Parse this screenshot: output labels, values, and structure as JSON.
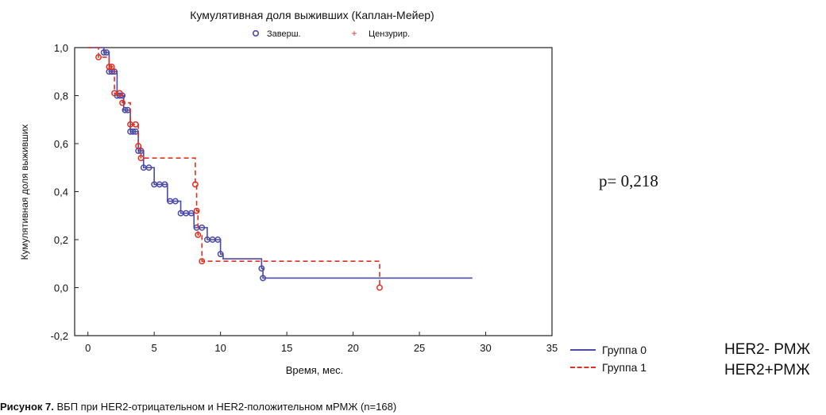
{
  "chart_data": {
    "type": "line",
    "title": "Кумулятивная доля выживших (Каплан-Мейер)",
    "xlabel": "Время, мес.",
    "ylabel": "Кумулятивная доля выживших",
    "xlim": [
      -1,
      35
    ],
    "ylim": [
      -0.2,
      1.0
    ],
    "x_ticks": [
      "0",
      "5",
      "10",
      "15",
      "20",
      "25",
      "30",
      "35"
    ],
    "y_ticks": [
      "-0,2",
      "0,0",
      "0,2",
      "0,4",
      "0,6",
      "0,8",
      "1,0"
    ],
    "marker_legend": {
      "complete": "Заверш.",
      "censored": "Цензурир."
    },
    "grid": false,
    "series": [
      {
        "name": "Группа 0",
        "color": "#4a4aa8",
        "style": "solid",
        "steps": [
          [
            0,
            1.0
          ],
          [
            1.2,
            0.98
          ],
          [
            1.6,
            0.9
          ],
          [
            2.2,
            0.8
          ],
          [
            2.7,
            0.74
          ],
          [
            3.2,
            0.65
          ],
          [
            3.8,
            0.57
          ],
          [
            4.2,
            0.5
          ],
          [
            5.0,
            0.43
          ],
          [
            6.0,
            0.36
          ],
          [
            7.0,
            0.31
          ],
          [
            8.0,
            0.25
          ],
          [
            9.0,
            0.2
          ],
          [
            10.0,
            0.14
          ],
          [
            10.2,
            0.12
          ],
          [
            13.0,
            0.12
          ],
          [
            13.1,
            0.08
          ],
          [
            13.2,
            0.04
          ],
          [
            29.0,
            0.04
          ]
        ],
        "events": [
          1.2,
          1.4,
          1.6,
          1.8,
          2.0,
          2.2,
          2.4,
          2.6,
          2.8,
          3.0,
          3.2,
          3.4,
          3.6,
          3.8,
          4.0,
          4.2,
          4.6,
          5.0,
          5.4,
          5.8,
          6.2,
          6.6,
          7.0,
          7.4,
          7.8,
          8.2,
          8.6,
          9.0,
          9.4,
          9.8,
          10.0,
          13.1,
          13.2
        ]
      },
      {
        "name": "Группа 1",
        "color": "#e03020",
        "style": "dashed",
        "steps": [
          [
            0,
            1.0
          ],
          [
            0.8,
            0.96
          ],
          [
            1.6,
            0.92
          ],
          [
            2.0,
            0.81
          ],
          [
            2.6,
            0.77
          ],
          [
            3.2,
            0.68
          ],
          [
            3.8,
            0.59
          ],
          [
            4.0,
            0.54
          ],
          [
            8.0,
            0.54
          ],
          [
            8.1,
            0.43
          ],
          [
            8.2,
            0.32
          ],
          [
            8.3,
            0.22
          ],
          [
            8.6,
            0.11
          ],
          [
            22.0,
            0.11
          ],
          [
            22.0,
            0.0
          ]
        ],
        "events": [
          0.8,
          1.6,
          1.8,
          2.0,
          2.4,
          2.6,
          3.2,
          3.6,
          3.8,
          4.0,
          8.1,
          8.2,
          8.3,
          8.6,
          22.0
        ]
      }
    ]
  },
  "annotations": {
    "p_value": "p= 0,218",
    "group0_note": "HER2- РМЖ",
    "group1_note": "HER2+РМЖ"
  },
  "caption": {
    "label": "Рисунок 7.",
    "text": " ВБП при HER2-отрицательном и HER2-положительном мРМЖ (n=168)"
  }
}
